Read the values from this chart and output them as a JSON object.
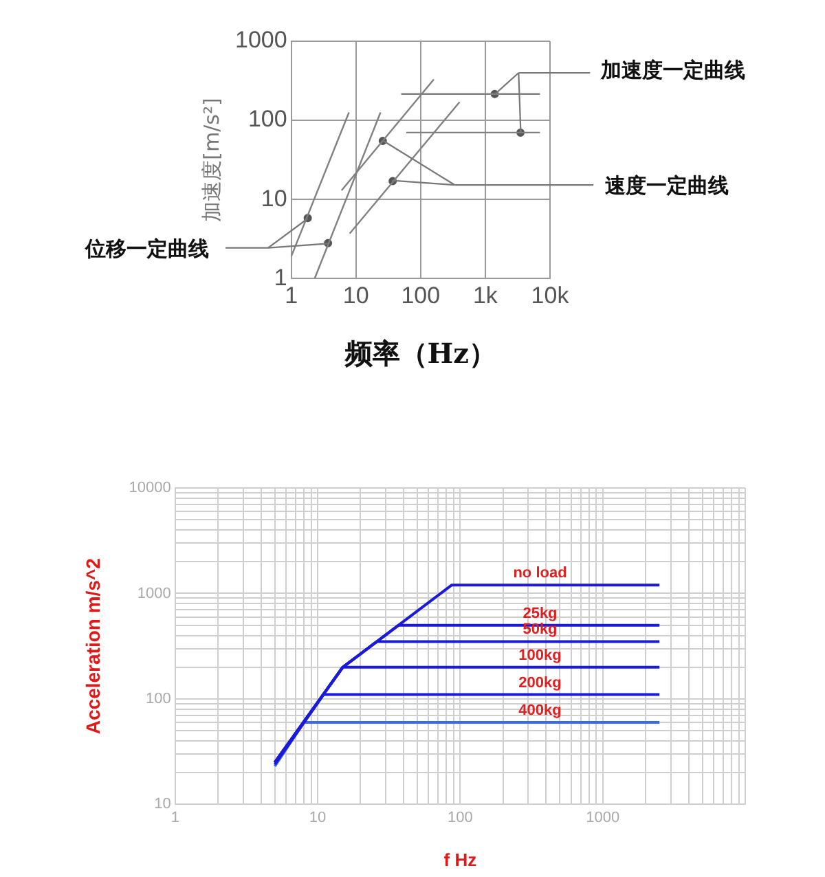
{
  "chart_data": [
    {
      "type": "line",
      "xlabel": "频率（Hz）",
      "ylabel": "加速度[m/s²]",
      "xlim": [
        1,
        10000
      ],
      "xticks": [
        1,
        10,
        100,
        {
          "value": 1000,
          "label": "1k"
        },
        {
          "value": 10000,
          "label": "10k"
        }
      ],
      "ylim": [
        1,
        1000
      ],
      "yticks": [
        1,
        10,
        100,
        1000
      ],
      "log": "xy",
      "grid": true,
      "legend": false,
      "marker": "none",
      "line_style": "solid",
      "annotations": [
        "位移一定曲线",
        "速度一定曲线",
        "加速度一定曲线"
      ],
      "series": [
        {
          "color": "#808080",
          "x": [
            1,
            7.8
          ],
          "values": [
            1.9,
            126
          ]
        },
        {
          "color": "#808080",
          "x": [
            2.3,
            24
          ],
          "values": [
            1,
            126
          ]
        },
        {
          "color": "#808080",
          "x": [
            6,
            160
          ],
          "values": [
            13,
            330
          ]
        },
        {
          "color": "#808080",
          "x": [
            8,
            400
          ],
          "values": [
            3.7,
            170
          ]
        },
        {
          "color": "#808080",
          "x": [
            50,
            7000
          ],
          "values": [
            215,
            215
          ]
        },
        {
          "color": "#808080",
          "x": [
            60,
            7000
          ],
          "values": [
            70,
            70
          ]
        },
        {
          "type": "scatter",
          "marker": "circle",
          "color": "#555555",
          "x": [
            1.8,
            3.7
          ],
          "values": [
            5.8,
            2.8
          ]
        },
        {
          "type": "scatter",
          "marker": "circle",
          "color": "#555555",
          "x": [
            26,
            37
          ],
          "values": [
            55,
            17
          ]
        },
        {
          "type": "scatter",
          "marker": "circle",
          "color": "#555555",
          "x": [
            1400,
            3500
          ],
          "values": [
            215,
            70
          ]
        }
      ]
    },
    {
      "type": "line",
      "xlabel": "f Hz",
      "ylabel": "Acceleration m/s^2",
      "xlim": [
        1,
        10000
      ],
      "xticks": [
        1,
        {
          "value": 2,
          "label": null
        },
        {
          "value": 3,
          "label": null
        },
        {
          "value": 4,
          "label": null
        },
        {
          "value": 5,
          "label": null
        },
        {
          "value": 6,
          "label": null
        },
        {
          "value": 7,
          "label": null
        },
        {
          "value": 8,
          "label": null
        },
        {
          "value": 9,
          "label": null
        },
        10,
        {
          "value": 20,
          "label": null
        },
        {
          "value": 30,
          "label": null
        },
        {
          "value": 40,
          "label": null
        },
        {
          "value": 50,
          "label": null
        },
        {
          "value": 60,
          "label": null
        },
        {
          "value": 70,
          "label": null
        },
        {
          "value": 80,
          "label": null
        },
        {
          "value": 90,
          "label": null
        },
        100,
        {
          "value": 200,
          "label": null
        },
        {
          "value": 300,
          "label": null
        },
        {
          "value": 400,
          "label": null
        },
        {
          "value": 500,
          "label": null
        },
        {
          "value": 600,
          "label": null
        },
        {
          "value": 700,
          "label": null
        },
        {
          "value": 800,
          "label": null
        },
        {
          "value": 900,
          "label": null
        },
        1000,
        {
          "value": 2000,
          "label": null
        },
        {
          "value": 3000,
          "label": null
        },
        {
          "value": 4000,
          "label": null
        },
        {
          "value": 5000,
          "label": null
        },
        {
          "value": 6000,
          "label": null
        },
        {
          "value": 7000,
          "label": null
        },
        {
          "value": 8000,
          "label": null
        },
        {
          "value": 9000,
          "label": null
        },
        {
          "value": 10000,
          "label": null
        }
      ],
      "ylim": [
        10,
        10000
      ],
      "yticks": [
        10,
        {
          "value": 20,
          "label": null
        },
        {
          "value": 30,
          "label": null
        },
        {
          "value": 40,
          "label": null
        },
        {
          "value": 50,
          "label": null
        },
        {
          "value": 60,
          "label": null
        },
        {
          "value": 70,
          "label": null
        },
        {
          "value": 80,
          "label": null
        },
        {
          "value": 90,
          "label": null
        },
        100,
        {
          "value": 200,
          "label": null
        },
        {
          "value": 300,
          "label": null
        },
        {
          "value": 400,
          "label": null
        },
        {
          "value": 500,
          "label": null
        },
        {
          "value": 600,
          "label": null
        },
        {
          "value": 700,
          "label": null
        },
        {
          "value": 800,
          "label": null
        },
        {
          "value": 900,
          "label": null
        },
        1000,
        {
          "value": 2000,
          "label": null
        },
        {
          "value": 3000,
          "label": null
        },
        {
          "value": 4000,
          "label": null
        },
        {
          "value": 5000,
          "label": null
        },
        {
          "value": 6000,
          "label": null
        },
        {
          "value": 7000,
          "label": null
        },
        {
          "value": 8000,
          "label": null
        },
        {
          "value": 9000,
          "label": null
        },
        10000
      ],
      "log": "xy",
      "grid": true,
      "legend": false,
      "marker": "none",
      "line_style": "solid",
      "series": [
        {
          "name": "no load",
          "color": "#1a1ad8",
          "x": [
            5,
            15,
            87,
            2500
          ],
          "values": [
            25,
            200,
            1200,
            1200
          ]
        },
        {
          "name": "25kg",
          "color": "#1a1ad8",
          "x": [
            5,
            15,
            37,
            2500
          ],
          "values": [
            25,
            200,
            500,
            500
          ]
        },
        {
          "name": "50kg",
          "color": "#1a1ad8",
          "x": [
            5,
            15,
            26,
            2500
          ],
          "values": [
            25,
            200,
            350,
            350
          ]
        },
        {
          "name": "100kg",
          "color": "#1a1ad8",
          "x": [
            5,
            15,
            2500
          ],
          "values": [
            25,
            200,
            200
          ]
        },
        {
          "name": "200kg",
          "color": "#1a1ad8",
          "x": [
            5,
            11,
            2500
          ],
          "values": [
            24,
            110,
            110
          ]
        },
        {
          "name": "400kg",
          "color": "#3a6ae8",
          "x": [
            5,
            8,
            2500
          ],
          "values": [
            23,
            60,
            60
          ]
        }
      ]
    }
  ]
}
